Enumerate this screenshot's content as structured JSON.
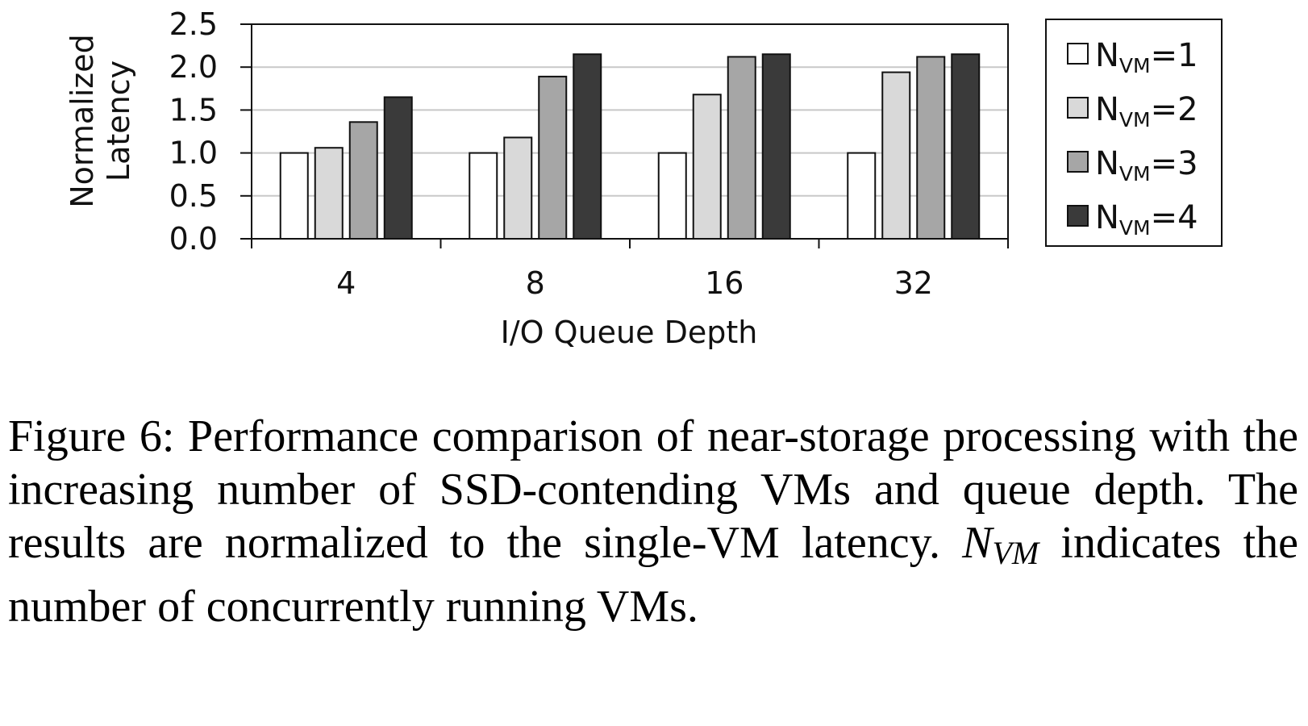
{
  "chart_data": {
    "type": "bar",
    "title": "",
    "xlabel": "I/O Queue Depth",
    "ylabel_lines": [
      "Normalized",
      "Latency"
    ],
    "categories": [
      "4",
      "8",
      "16",
      "32"
    ],
    "ylim": [
      0,
      2.5
    ],
    "yticks": [
      "0.0",
      "0.5",
      "1.0",
      "1.5",
      "2.0",
      "2.5"
    ],
    "ytick_values": [
      0,
      0.5,
      1.0,
      1.5,
      2.0,
      2.5
    ],
    "grid": true,
    "legend_placement": "right",
    "series": [
      {
        "name_base": "N",
        "name_sub": "VM",
        "name_rest": "=1",
        "color": "#ffffff",
        "values": [
          1.0,
          1.0,
          1.0,
          1.0
        ]
      },
      {
        "name_base": "N",
        "name_sub": "VM",
        "name_rest": "=2",
        "color": "#d9d9d9",
        "values": [
          1.06,
          1.18,
          1.68,
          1.94
        ]
      },
      {
        "name_base": "N",
        "name_sub": "VM",
        "name_rest": "=3",
        "color": "#a6a6a6",
        "values": [
          1.36,
          1.89,
          2.12,
          2.12
        ]
      },
      {
        "name_base": "N",
        "name_sub": "VM",
        "name_rest": "=4",
        "color": "#3a3a3a",
        "values": [
          1.65,
          2.15,
          2.15,
          2.15
        ]
      }
    ]
  },
  "caption": {
    "part1": "Figure 6: Performance comparison of near-storage processing with the increasing number of SSD-contending VMs and queue depth. The results are normalized to the single-VM latency. ",
    "nvm_base": "N",
    "nvm_sub": "VM",
    "part2": " indicates the number of concurrently running VMs."
  }
}
